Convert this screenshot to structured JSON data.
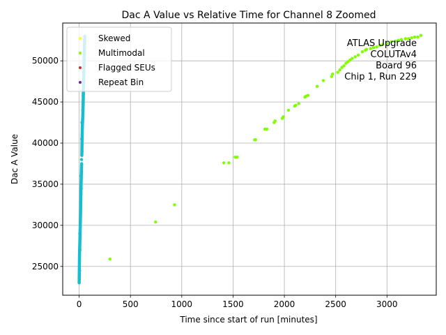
{
  "chart_data": {
    "type": "scatter",
    "title": "Dac A Value vs Relative Time for Channel 8 Zoomed",
    "xlabel": "Time since start of run [minutes]",
    "ylabel": "Dac A Value",
    "xlim": [
      -160,
      3480
    ],
    "ylim": [
      21500,
      54600
    ],
    "xticks": [
      0,
      500,
      1000,
      1500,
      2000,
      2500,
      3000
    ],
    "yticks": [
      25000,
      30000,
      35000,
      40000,
      45000,
      50000
    ],
    "grid": true,
    "legend_position": "top-left",
    "annotation": [
      "ATLAS Upgrade",
      "COLUTAv4",
      "Board 96",
      "Chip 1, Run 229"
    ],
    "colors": {
      "teal": "#17becf",
      "green": "#7fff00",
      "yellow": "#ffff00",
      "red": "#d62728",
      "purple": "#7b1fa2"
    },
    "series": [
      {
        "name": "Skewed",
        "color": "#ffff00",
        "points": []
      },
      {
        "name": "Multimodal",
        "color": "#7fff00",
        "points": [
          [
            300,
            25900
          ],
          [
            745,
            30400
          ],
          [
            930,
            32500
          ],
          [
            1410,
            37600
          ],
          [
            1460,
            37600
          ],
          [
            1520,
            38300
          ],
          [
            1540,
            38300
          ],
          [
            1710,
            40400
          ],
          [
            1720,
            40400
          ],
          [
            1810,
            41700
          ],
          [
            1830,
            41700
          ],
          [
            1900,
            42500
          ],
          [
            1910,
            42700
          ],
          [
            1980,
            43000
          ],
          [
            1990,
            43200
          ],
          [
            2040,
            44000
          ],
          [
            2100,
            44500
          ],
          [
            2110,
            44600
          ],
          [
            2140,
            44800
          ],
          [
            2200,
            45600
          ],
          [
            2210,
            45700
          ],
          [
            2230,
            45800
          ],
          [
            2320,
            46900
          ],
          [
            2380,
            47600
          ],
          [
            2460,
            48100
          ],
          [
            2470,
            48400
          ],
          [
            2520,
            48600
          ],
          [
            2540,
            48900
          ],
          [
            2560,
            49200
          ],
          [
            2580,
            49400
          ],
          [
            2600,
            49700
          ],
          [
            2620,
            49900
          ],
          [
            2640,
            50100
          ],
          [
            2660,
            50300
          ],
          [
            2690,
            50500
          ],
          [
            2720,
            50700
          ],
          [
            2760,
            51100
          ],
          [
            2790,
            51300
          ],
          [
            2800,
            51400
          ],
          [
            2840,
            51500
          ],
          [
            2870,
            51600
          ],
          [
            2900,
            51700
          ],
          [
            2930,
            51900
          ],
          [
            2960,
            52000
          ],
          [
            3000,
            52100
          ],
          [
            3040,
            52300
          ],
          [
            3080,
            52400
          ],
          [
            3110,
            52500
          ],
          [
            3140,
            52600
          ],
          [
            3180,
            52700
          ],
          [
            3210,
            52700
          ],
          [
            3240,
            52800
          ],
          [
            3270,
            52900
          ],
          [
            3300,
            52900
          ],
          [
            3330,
            53100
          ]
        ]
      },
      {
        "name": "Flagged SEUs",
        "color": "#d62728",
        "points": []
      },
      {
        "name": "Repeat Bin",
        "color": "#7b1fa2",
        "points": []
      }
    ],
    "dense_band": {
      "color": "#17becf",
      "segments": [
        [
          [
            0,
            23000
          ],
          [
            2,
            25000
          ],
          [
            4,
            26500
          ],
          [
            7,
            28000
          ],
          [
            10,
            29500
          ],
          [
            12,
            30500
          ],
          [
            14,
            31500
          ],
          [
            16,
            33000
          ],
          [
            18,
            34500
          ],
          [
            20,
            35500
          ],
          [
            22,
            36500
          ],
          [
            24,
            37500
          ]
        ],
        [
          [
            26,
            38500
          ],
          [
            28,
            40000
          ],
          [
            30,
            41500
          ],
          [
            33,
            42500
          ],
          [
            36,
            43500
          ],
          [
            38,
            44500
          ],
          [
            40,
            45500
          ],
          [
            42,
            46500
          ],
          [
            44,
            47500
          ],
          [
            46,
            48500
          ],
          [
            48,
            49500
          ],
          [
            50,
            50500
          ],
          [
            52,
            51500
          ],
          [
            54,
            52500
          ],
          [
            55,
            53000
          ]
        ]
      ],
      "scatter": [
        [
          5,
          24500
        ],
        [
          8,
          27000
        ],
        [
          6,
          29000
        ],
        [
          12,
          29800
        ],
        [
          15,
          32500
        ],
        [
          18,
          33800
        ],
        [
          21,
          34500
        ],
        [
          17,
          36000
        ],
        [
          24,
          36500
        ],
        [
          23,
          38000
        ],
        [
          28,
          39000
        ],
        [
          25,
          40500
        ],
        [
          31,
          42000
        ],
        [
          27,
          42500
        ],
        [
          35,
          44000
        ],
        [
          39,
          45800
        ],
        [
          43,
          47000
        ],
        [
          47,
          48200
        ],
        [
          51,
          50000
        ],
        [
          53,
          51200
        ]
      ]
    }
  }
}
